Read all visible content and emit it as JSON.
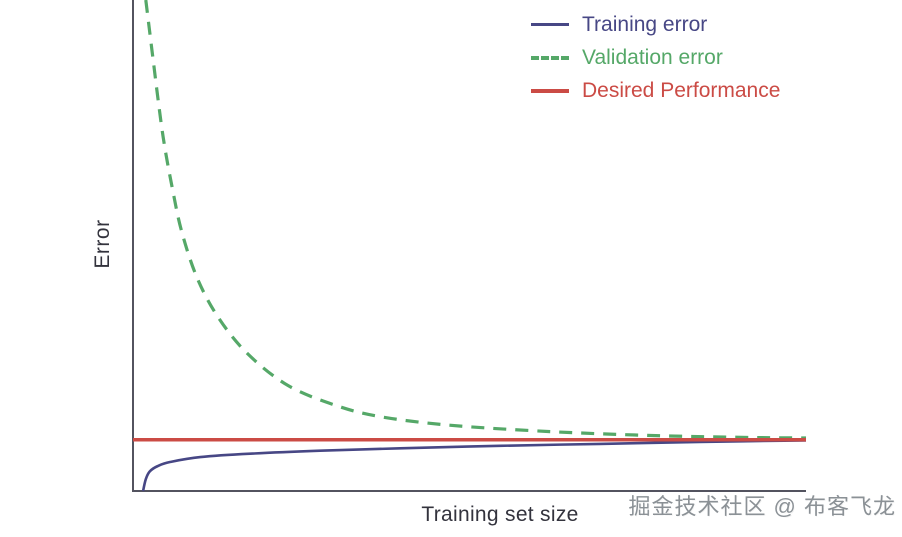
{
  "chart_data": {
    "type": "line",
    "title": "",
    "xlabel": "Training set size",
    "ylabel": "Error",
    "x_ticks": [],
    "y_ticks": [],
    "grid": false,
    "legend_position": "top-right",
    "coords_note": "No numeric scale shown; points are normalized plot-area fractions [x from y-axis to right end, y from top to x-axis]",
    "series": [
      {
        "id": "training-error",
        "name": "Training error",
        "color": "#474785",
        "line_style": "solid",
        "line_width": 2.6,
        "points": [
          [
            0.015,
            1.0
          ],
          [
            0.019,
            0.976
          ],
          [
            0.025,
            0.96
          ],
          [
            0.037,
            0.949
          ],
          [
            0.055,
            0.941
          ],
          [
            0.1,
            0.931
          ],
          [
            0.174,
            0.924
          ],
          [
            0.278,
            0.918
          ],
          [
            0.397,
            0.913
          ],
          [
            0.545,
            0.908
          ],
          [
            0.694,
            0.904
          ],
          [
            0.842,
            0.9
          ],
          [
            1.0,
            0.897
          ]
        ]
      },
      {
        "id": "validation-error",
        "name": "Validation error",
        "color": "#55a868",
        "line_style": "dashed",
        "line_width": 3.2,
        "points": [
          [
            0.019,
            0.0
          ],
          [
            0.028,
            0.1
          ],
          [
            0.037,
            0.2
          ],
          [
            0.046,
            0.29
          ],
          [
            0.058,
            0.38
          ],
          [
            0.072,
            0.47
          ],
          [
            0.095,
            0.565
          ],
          [
            0.126,
            0.645
          ],
          [
            0.17,
            0.72
          ],
          [
            0.23,
            0.785
          ],
          [
            0.3,
            0.825
          ],
          [
            0.365,
            0.848
          ],
          [
            0.47,
            0.866
          ],
          [
            0.62,
            0.879
          ],
          [
            0.77,
            0.887
          ],
          [
            0.92,
            0.891
          ],
          [
            1.0,
            0.892
          ]
        ]
      },
      {
        "id": "desired-performance",
        "name": "Desired Performance",
        "color": "#cb4b45",
        "line_style": "solid",
        "line_width": 3.5,
        "points": [
          [
            0.0,
            0.8955
          ],
          [
            1.0,
            0.8955
          ]
        ]
      }
    ],
    "axis_color": "#53535f"
  },
  "watermark": {
    "text": "掘金技术社区 @ 布客飞龙",
    "color": "#8b9196"
  }
}
